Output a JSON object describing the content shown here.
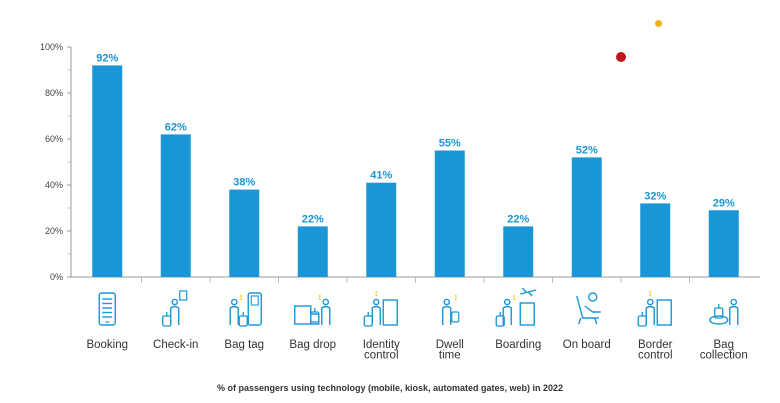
{
  "colors": {
    "bar": "#1a96d6",
    "icon": "#1a96d6",
    "accent": "#f5c518",
    "label": "#1a96d6",
    "dot_red": "#c0181b",
    "dot_orange": "#f0b01c"
  },
  "caption": "% of passengers using technology (mobile, kiosk, automated gates, web) in 2022",
  "chart_data": {
    "type": "bar",
    "categories": [
      [
        "Booking"
      ],
      [
        "Check-in"
      ],
      [
        "Bag tag"
      ],
      [
        "Bag drop"
      ],
      [
        "Identity",
        "control"
      ],
      [
        "Dwell",
        "time"
      ],
      [
        "Boarding"
      ],
      [
        "On board"
      ],
      [
        "Border",
        "control"
      ],
      [
        "Bag",
        "collection"
      ]
    ],
    "values": [
      92,
      62,
      38,
      22,
      41,
      55,
      22,
      52,
      32,
      29
    ],
    "value_labels": [
      "92%",
      "62%",
      "38%",
      "22%",
      "41%",
      "55%",
      "22%",
      "52%",
      "32%",
      "29%"
    ],
    "y_ticks": [
      "0%",
      "20%",
      "40%",
      "60%",
      "80%",
      "100%"
    ],
    "ylim": [
      0,
      100
    ],
    "icons": [
      "phone-booking-icon",
      "check-in-icon",
      "bag-tag-kiosk-icon",
      "bag-drop-icon",
      "identity-control-icon",
      "dwell-time-icon",
      "boarding-icon",
      "on-board-seat-icon",
      "border-control-icon",
      "bag-collection-icon"
    ],
    "grid": false
  }
}
